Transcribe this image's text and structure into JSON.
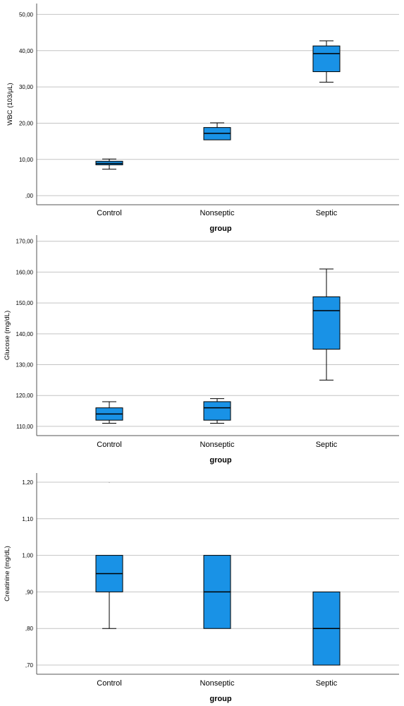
{
  "chart_data": [
    {
      "type": "boxplot",
      "xlabel": "group",
      "ylabel": "WBC (103/μL)",
      "categories": [
        "Control",
        "Nonseptic",
        "Septic"
      ],
      "ylim": [
        -2.5,
        53
      ],
      "yticks": [
        0,
        10,
        20,
        30,
        40,
        50
      ],
      "ytick_labels": [
        ",00",
        "10,00",
        "20,00",
        "30,00",
        "40,00",
        "50,00"
      ],
      "boxes": [
        {
          "min": 7.3,
          "q1": 8.5,
          "median": 8.9,
          "q3": 9.5,
          "max": 10.1
        },
        {
          "min": 15.4,
          "q1": 15.4,
          "median": 17.2,
          "q3": 18.8,
          "max": 20.1
        },
        {
          "min": 31.3,
          "q1": 34.2,
          "median": 39.2,
          "q3": 41.3,
          "max": 42.7
        }
      ],
      "outliers": [],
      "box_color": "#1992e6",
      "grid": true
    },
    {
      "type": "boxplot",
      "xlabel": "group",
      "ylabel": "Glucose (mg/dL)",
      "categories": [
        "Control",
        "Nonseptic",
        "Septic"
      ],
      "ylim": [
        107,
        172
      ],
      "yticks": [
        110,
        120,
        130,
        140,
        150,
        160,
        170
      ],
      "ytick_labels": [
        "110,00",
        "120,00",
        "130,00",
        "140,00",
        "150,00",
        "160,00",
        "170,00"
      ],
      "boxes": [
        {
          "min": 111,
          "q1": 112,
          "median": 114,
          "q3": 116,
          "max": 118
        },
        {
          "min": 111,
          "q1": 112,
          "median": 116,
          "q3": 118,
          "max": 119
        },
        {
          "min": 125,
          "q1": 135,
          "median": 147.5,
          "q3": 152,
          "max": 161
        }
      ],
      "outliers": [],
      "box_color": "#1992e6",
      "grid": true
    },
    {
      "type": "boxplot",
      "xlabel": "group",
      "ylabel": "Creatinine (mg/dL)",
      "categories": [
        "Control",
        "Nonseptic",
        "Septic"
      ],
      "ylim": [
        0.675,
        1.225
      ],
      "yticks": [
        0.7,
        0.8,
        0.9,
        1.0,
        1.1,
        1.2
      ],
      "ytick_labels": [
        ",70",
        ",80",
        ",90",
        "1,00",
        "1,10",
        "1,20"
      ],
      "boxes": [
        {
          "min": 0.8,
          "q1": 0.9,
          "median": 0.95,
          "q3": 1.0,
          "max": 1.0
        },
        {
          "min": 0.8,
          "q1": 0.8,
          "median": 0.9,
          "q3": 1.0,
          "max": 1.0
        },
        {
          "min": 0.7,
          "q1": 0.7,
          "median": 0.8,
          "q3": 0.9,
          "max": 0.9
        }
      ],
      "outliers": [
        {
          "category": "Control",
          "value": 1.2
        }
      ],
      "box_color": "#1992e6",
      "grid": true
    }
  ]
}
